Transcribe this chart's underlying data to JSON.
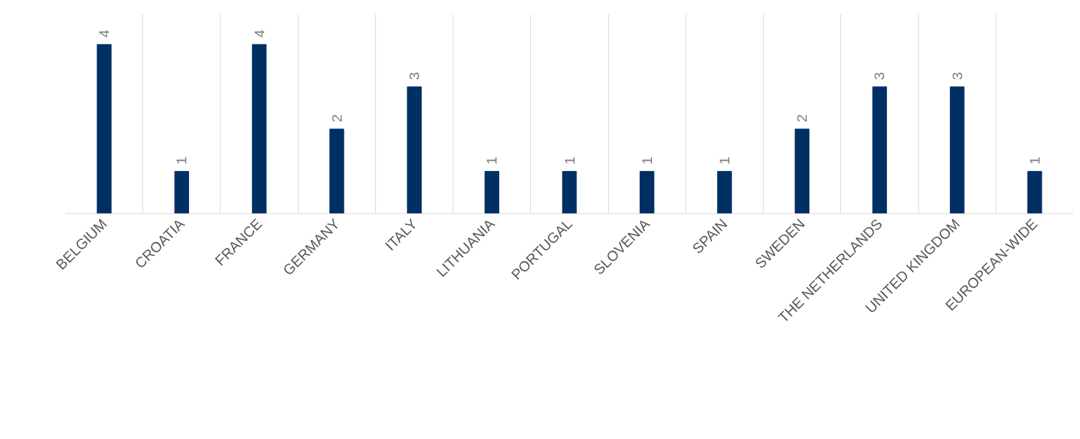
{
  "chart_data": {
    "type": "bar",
    "categories": [
      "BELGIUM",
      "CROATIA",
      "FRANCE",
      "GERMANY",
      "ITALY",
      "LITHUANIA",
      "PORTUGAL",
      "SLOVENIA",
      "SPAIN",
      "SWEDEN",
      "THE NETHERLANDS",
      "UNITED KINGDOM",
      "EUROPEAN-WIDE"
    ],
    "values": [
      4,
      1,
      4,
      2,
      3,
      1,
      1,
      1,
      1,
      2,
      3,
      3,
      1
    ],
    "color": "#003063",
    "data_labels": true,
    "grid": "x",
    "tick_labels": "x"
  }
}
